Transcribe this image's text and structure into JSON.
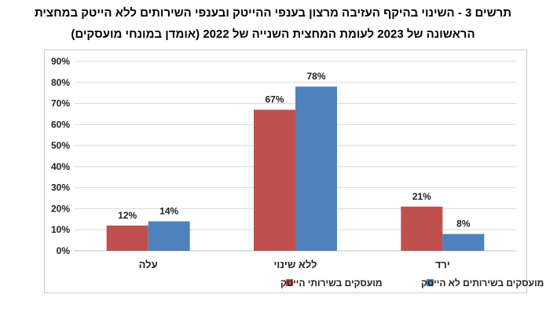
{
  "title_line1": "תרשים 3 - השינוי בהיקף העזיבה מרצון בענפי ההייטק ובענפי השירותים ללא הייטק במחצית",
  "title_line2": "הראשונה של 2023 לעומת המחצית השנייה של 2022 (אומדן במונחי מועסקים)",
  "chart_data": {
    "type": "bar",
    "categories": [
      "עלה",
      "ללא שינוי",
      "ירד"
    ],
    "series": [
      {
        "name": "מועסקים בשירותי הייטק",
        "values": [
          12,
          67,
          21
        ],
        "color": "#c0504d"
      },
      {
        "name": "מועסקים בשירותים לא הייטק",
        "values": [
          14,
          78,
          8
        ],
        "color": "#4f81bd"
      }
    ],
    "value_labels": [
      [
        "12%",
        "67%",
        "21%"
      ],
      [
        "14%",
        "78%",
        "8%"
      ]
    ],
    "ylim": [
      0,
      90
    ],
    "yticks": [
      "0%",
      "10%",
      "20%",
      "30%",
      "40%",
      "50%",
      "60%",
      "70%",
      "80%",
      "90%"
    ],
    "grid": true,
    "legend_position": "bottom"
  }
}
